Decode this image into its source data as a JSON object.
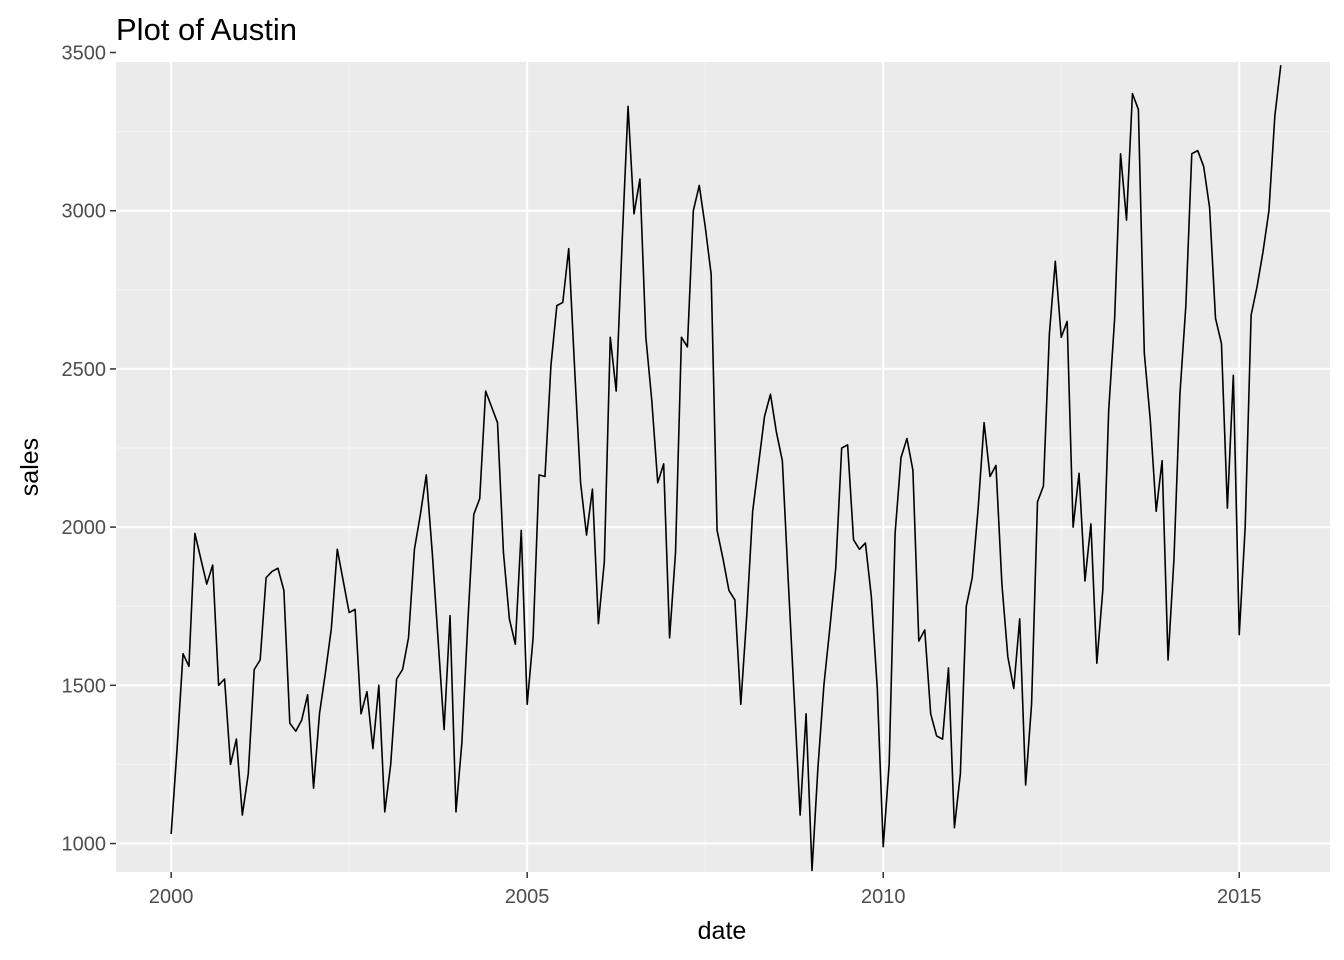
{
  "colors": {
    "panel_background": "#ebebeb",
    "grid_major": "#ffffff",
    "grid_minor": "#f5f5f5",
    "series_line": "#000000",
    "tick_text": "#4d4d4d",
    "tick_mark": "#333333"
  },
  "chart_data": {
    "type": "line",
    "title": "Plot of Austin",
    "xlabel": "date",
    "ylabel": "sales",
    "grid": true,
    "legend": "none",
    "xlim": [
      2000,
      2015.5
    ],
    "ylim": [
      910,
      3470
    ],
    "xticks": [
      2000,
      2005,
      2010,
      2015
    ],
    "xtick_labels": [
      "2000",
      "2005",
      "2010",
      "2015"
    ],
    "yticks": [
      1000,
      1500,
      2000,
      2500,
      3000,
      3500
    ],
    "ytick_labels": [
      "1000",
      "1500",
      "2000",
      "2500",
      "3000",
      "3500"
    ],
    "series": [
      {
        "x_start": "2000-01",
        "frequency": "monthly",
        "values": [
          1030,
          1300,
          1600,
          1560,
          1980,
          1900,
          1820,
          1880,
          1500,
          1520,
          1250,
          1330,
          1090,
          1220,
          1550,
          1580,
          1840,
          1860,
          1870,
          1800,
          1380,
          1355,
          1390,
          1470,
          1175,
          1410,
          1540,
          1680,
          1930,
          1830,
          1730,
          1740,
          1410,
          1480,
          1300,
          1500,
          1100,
          1250,
          1520,
          1550,
          1650,
          1930,
          2040,
          2165,
          1920,
          1640,
          1360,
          1720,
          1100,
          1320,
          1700,
          2040,
          2090,
          2430,
          2380,
          2330,
          1920,
          1710,
          1630,
          1990,
          1440,
          1650,
          2165,
          2160,
          2510,
          2700,
          2710,
          2880,
          2500,
          2140,
          1975,
          2120,
          1695,
          1890,
          2600,
          2430,
          2900,
          3330,
          2990,
          3100,
          2600,
          2400,
          2140,
          2200,
          1650,
          1920,
          2600,
          2570,
          3000,
          3080,
          2950,
          2800,
          1990,
          1900,
          1800,
          1770,
          1440,
          1720,
          2050,
          2200,
          2350,
          2420,
          2300,
          2210,
          1830,
          1460,
          1090,
          1410,
          915,
          1240,
          1500,
          1680,
          1870,
          2250,
          2260,
          1960,
          1930,
          1950,
          1780,
          1490,
          990,
          1250,
          1980,
          2220,
          2280,
          2180,
          1640,
          1675,
          1410,
          1340,
          1330,
          1555,
          1050,
          1220,
          1750,
          1840,
          2060,
          2330,
          2160,
          2195,
          1820,
          1590,
          1490,
          1710,
          1185,
          1440,
          2080,
          2130,
          2610,
          2840,
          2600,
          2650,
          2000,
          2170,
          1830,
          2010,
          1570,
          1800,
          2370,
          2660,
          3180,
          2970,
          3370,
          3320,
          2550,
          2340,
          2050,
          2210,
          1580,
          1900,
          2420,
          2700,
          3180,
          3190,
          3140,
          3010,
          2660,
          2580,
          2060,
          2480,
          1660,
          2000,
          2670,
          2760,
          2870,
          3000,
          3300,
          3460
        ]
      }
    ]
  }
}
